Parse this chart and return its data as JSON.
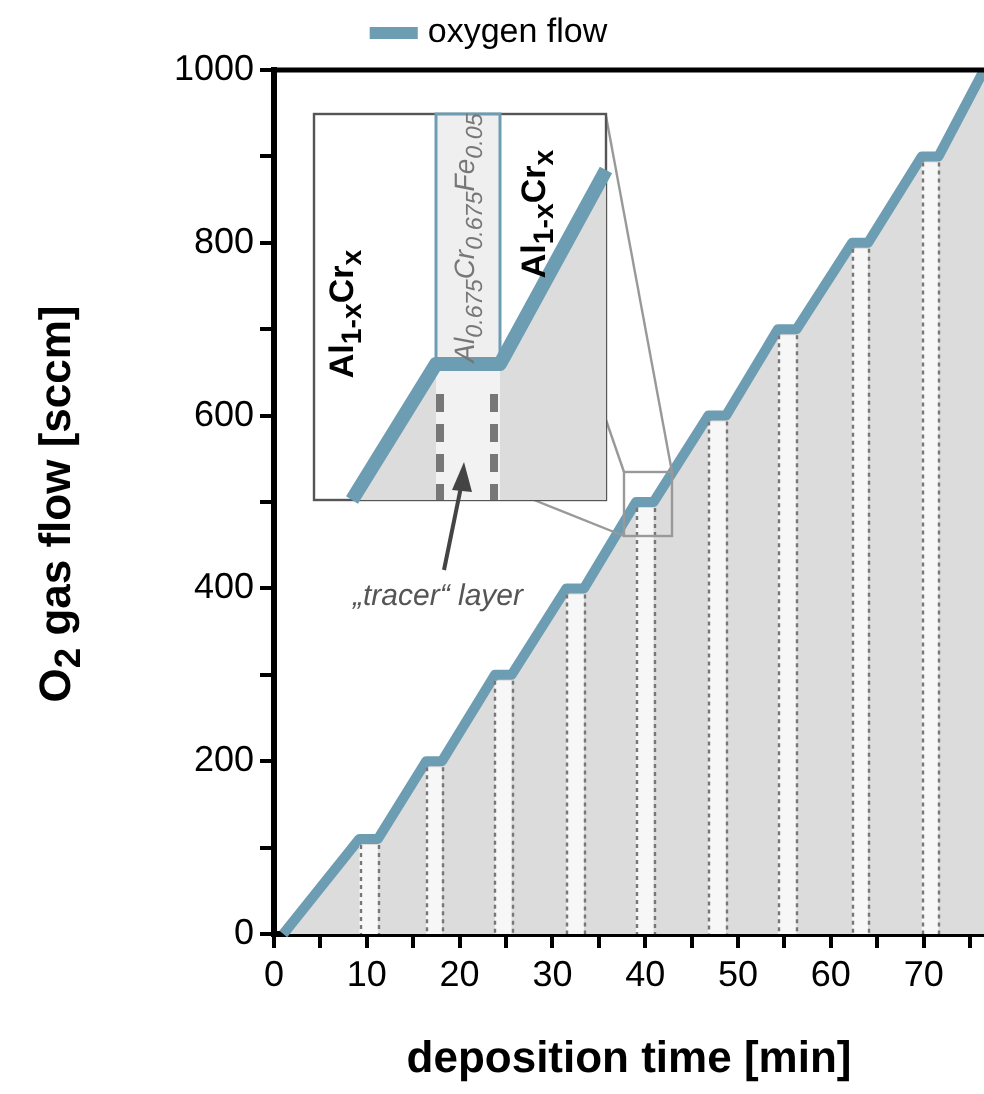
{
  "chart_data": {
    "type": "area",
    "xlabel": "deposition time [min]",
    "ylabel": "O$_{2}$ gas flow  [sccm]",
    "x": [
      1,
      9.2,
      11.2,
      16.4,
      18.1,
      23.8,
      25.6,
      31.5,
      33.4,
      39.0,
      40.9,
      46.8,
      48.7,
      54.3,
      56.3,
      62.3,
      64.0,
      69.8,
      71.6,
      76.5
    ],
    "series": [
      {
        "name": "oxygen flow",
        "color": "#6c9db2",
        "values": [
          0,
          110,
          110,
          200,
          200,
          300,
          300,
          400,
          400,
          500,
          500,
          600,
          600,
          700,
          700,
          800,
          800,
          900,
          900,
          1000
        ]
      }
    ],
    "xlim": [
      0,
      76.5
    ],
    "xticks": [
      0,
      {
        "value": 5,
        "label": null
      },
      10,
      {
        "value": 15,
        "label": null
      },
      20,
      {
        "value": 25,
        "label": null
      },
      30,
      {
        "value": 35,
        "label": null
      },
      40,
      {
        "value": 45,
        "label": null
      },
      50,
      {
        "value": 55,
        "label": null
      },
      60,
      {
        "value": 65,
        "label": null
      },
      70,
      {
        "value": 75,
        "label": null
      }
    ],
    "ylim": [
      0,
      1000
    ],
    "yticks": [
      0,
      {
        "value": 100,
        "label": null
      },
      200,
      {
        "value": 300,
        "label": null
      },
      400,
      {
        "value": 500,
        "label": null
      },
      600,
      {
        "value": 700,
        "label": null
      },
      800,
      {
        "value": 900,
        "label": null
      },
      1000
    ],
    "bands": [
      {
        "axis": "x",
        "from": 9.2,
        "to": 11.2,
        "color": "#f7f7f7"
      },
      {
        "axis": "x",
        "from": 16.4,
        "to": 18.1,
        "color": "#f7f7f7"
      },
      {
        "axis": "x",
        "from": 23.8,
        "to": 25.6,
        "color": "#f7f7f7"
      },
      {
        "axis": "x",
        "from": 31.5,
        "to": 33.4,
        "color": "#f7f7f7"
      },
      {
        "axis": "x",
        "from": 39.0,
        "to": 40.9,
        "color": "#f7f7f7"
      },
      {
        "axis": "x",
        "from": 46.8,
        "to": 48.7,
        "color": "#f7f7f7"
      },
      {
        "axis": "x",
        "from": 54.3,
        "to": 56.3,
        "color": "#f7f7f7"
      },
      {
        "axis": "x",
        "from": 62.3,
        "to": 64.0,
        "color": "#f7f7f7"
      },
      {
        "axis": "x",
        "from": 69.8,
        "to": 71.6,
        "color": "#f7f7f7"
      }
    ],
    "ref_lines": [
      {
        "axis": "x",
        "value": 9.2,
        "color": "#777777",
        "line_style": "dotted"
      },
      {
        "axis": "x",
        "value": 11.2,
        "color": "#777777",
        "line_style": "dotted"
      },
      {
        "axis": "x",
        "value": 16.4,
        "color": "#777777",
        "line_style": "dotted"
      },
      {
        "axis": "x",
        "value": 18.1,
        "color": "#777777",
        "line_style": "dotted"
      },
      {
        "axis": "x",
        "value": 23.8,
        "color": "#777777",
        "line_style": "dotted"
      },
      {
        "axis": "x",
        "value": 25.6,
        "color": "#777777",
        "line_style": "dotted"
      },
      {
        "axis": "x",
        "value": 31.5,
        "color": "#777777",
        "line_style": "dotted"
      },
      {
        "axis": "x",
        "value": 33.4,
        "color": "#777777",
        "line_style": "dotted"
      },
      {
        "axis": "x",
        "value": 39.0,
        "color": "#777777",
        "line_style": "dotted"
      },
      {
        "axis": "x",
        "value": 40.9,
        "color": "#777777",
        "line_style": "dotted"
      },
      {
        "axis": "x",
        "value": 46.8,
        "color": "#777777",
        "line_style": "dotted"
      },
      {
        "axis": "x",
        "value": 48.7,
        "color": "#777777",
        "line_style": "dotted"
      },
      {
        "axis": "x",
        "value": 54.3,
        "color": "#777777",
        "line_style": "dotted"
      },
      {
        "axis": "x",
        "value": 56.3,
        "color": "#777777",
        "line_style": "dotted"
      },
      {
        "axis": "x",
        "value": 62.3,
        "color": "#777777",
        "line_style": "dotted"
      },
      {
        "axis": "x",
        "value": 64.0,
        "color": "#777777",
        "line_style": "dotted"
      },
      {
        "axis": "x",
        "value": 69.8,
        "color": "#777777",
        "line_style": "dotted"
      },
      {
        "axis": "x",
        "value": 71.6,
        "color": "#777777",
        "line_style": "dotted"
      }
    ],
    "annotations": [
      "Al$_{1-x}$Cr$_{x}$",
      "Al$_{0.675}$Cr$_{0.675}$Fe$_{0.05}$",
      "Al$_{1-x}$Cr$_{x}$",
      "„tracer“ layer"
    ],
    "grid": false,
    "legend": "top",
    "marker": "none",
    "line_style": "solid"
  }
}
